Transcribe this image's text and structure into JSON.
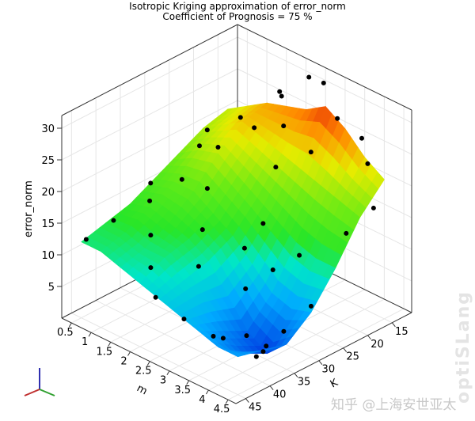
{
  "chart_data": {
    "type": "surface3d",
    "title": "Isotropic Kriging  approximation of error_norm",
    "subtitle": "Coefficient of Prognosis = 75 %",
    "xlabel": "m",
    "ylabel": "K",
    "zlabel": "error_norm",
    "x_ticks": [
      "0.5",
      "1",
      "1.5",
      "2",
      "2.5",
      "3",
      "3.5",
      "4",
      "4.5"
    ],
    "y_ticks": [
      "15",
      "20",
      "25",
      "30",
      "35",
      "40",
      "45"
    ],
    "z_ticks": [
      "5",
      "10",
      "15",
      "20",
      "25",
      "30"
    ],
    "xlim": [
      0.25,
      4.7
    ],
    "ylim": [
      11,
      47
    ],
    "zlim": [
      0,
      32
    ],
    "grid": true,
    "colormap": "jet",
    "colormap_range": [
      0,
      30
    ],
    "surface": {
      "m": [
        0.5,
        1,
        1.5,
        2,
        2.5,
        3,
        3.5,
        4,
        4.5
      ],
      "K": [
        15,
        20,
        25,
        30,
        35,
        40,
        45
      ],
      "z": [
        [
          21,
          23,
          25,
          26,
          27,
          29,
          27,
          24,
          22
        ],
        [
          20,
          22,
          24,
          23,
          22,
          21,
          20,
          19,
          18
        ],
        [
          18,
          20,
          21,
          19,
          17,
          15,
          13,
          12,
          12
        ],
        [
          16,
          17,
          17,
          15,
          13,
          10,
          7,
          6,
          7
        ],
        [
          14,
          15,
          14,
          13,
          11,
          7,
          3,
          1,
          4
        ],
        [
          13,
          13,
          12,
          12,
          10,
          8,
          5,
          3,
          5
        ],
        [
          12,
          12,
          11,
          10,
          9,
          8,
          7,
          6,
          6
        ]
      ]
    },
    "support_points": [
      [
        0.5,
        44,
        12
      ],
      [
        0.7,
        40,
        14
      ],
      [
        1.0,
        35,
        16
      ],
      [
        1.2,
        30,
        18
      ],
      [
        1.5,
        25,
        22
      ],
      [
        1.8,
        20,
        24
      ],
      [
        2.0,
        16,
        28
      ],
      [
        2.3,
        18,
        25
      ],
      [
        2.6,
        22,
        21
      ],
      [
        2.9,
        27,
        15
      ],
      [
        3.2,
        33,
        8
      ],
      [
        3.6,
        36,
        3
      ],
      [
        3.9,
        35,
        1
      ],
      [
        4.1,
        38,
        2
      ],
      [
        4.3,
        34,
        5
      ],
      [
        4.5,
        30,
        8
      ],
      [
        4.4,
        22,
        16
      ],
      [
        4.2,
        16,
        24
      ],
      [
        3.8,
        14,
        26
      ],
      [
        3.3,
        15,
        28
      ],
      [
        3.0,
        18,
        23
      ],
      [
        2.7,
        13,
        31
      ],
      [
        2.2,
        12,
        30
      ],
      [
        1.7,
        14,
        27
      ],
      [
        1.2,
        18,
        23
      ],
      [
        0.9,
        24,
        20
      ],
      [
        1.4,
        38,
        13
      ],
      [
        1.9,
        42,
        11
      ],
      [
        2.4,
        45,
        9
      ],
      [
        3.0,
        44,
        7
      ],
      [
        3.5,
        42,
        5
      ],
      [
        4.0,
        44,
        7
      ],
      [
        4.6,
        40,
        6
      ],
      [
        2.1,
        33,
        14
      ],
      [
        2.5,
        37,
        11
      ],
      [
        0.4,
        30,
        15
      ],
      [
        0.6,
        20,
        20
      ],
      [
        3.7,
        26,
        12
      ],
      [
        4.6,
        18,
        19
      ],
      [
        1.6,
        28,
        17
      ],
      [
        2.8,
        30,
        12
      ],
      [
        3.4,
        29,
        10
      ]
    ]
  },
  "axis_triad": {
    "x_color": "#c03030",
    "y_color": "#30a030",
    "z_color": "#3030b0"
  },
  "watermarks": {
    "brand": "optiSLang",
    "credit": "知乎 @上海安世亚太"
  }
}
